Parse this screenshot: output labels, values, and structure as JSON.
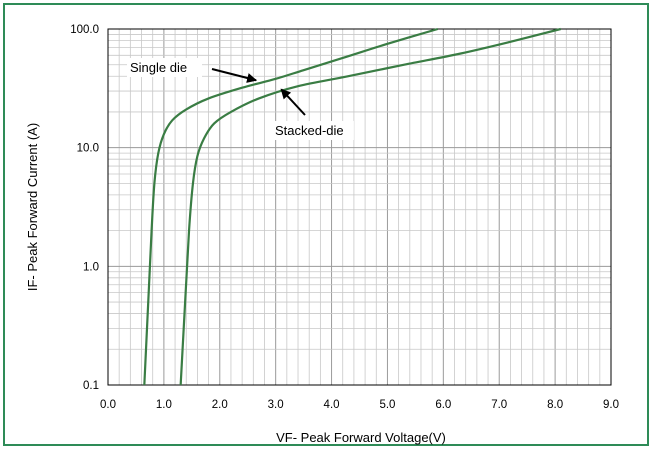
{
  "chart_data": {
    "type": "line",
    "xlabel": "VF- Peak Forward Voltage(V)",
    "ylabel": "IF- Peak Forward Current (A)",
    "xlim": [
      0.0,
      9.0
    ],
    "ylim": [
      0.1,
      100.0
    ],
    "yscale": "log",
    "grid": true,
    "x_ticks": [
      "0.0",
      "1.0",
      "2.0",
      "3.0",
      "4.0",
      "5.0",
      "6.0",
      "7.0",
      "8.0",
      "9.0"
    ],
    "y_ticks": [
      "0.1",
      "1.0",
      "10.0",
      "100.0"
    ],
    "series_color": "#3a7d44",
    "series": [
      {
        "name": "Single die",
        "points": [
          [
            0.65,
            0.1
          ],
          [
            0.72,
            0.5
          ],
          [
            0.78,
            2.0
          ],
          [
            0.83,
            5.0
          ],
          [
            0.9,
            9.0
          ],
          [
            1.0,
            13.0
          ],
          [
            1.15,
            17.0
          ],
          [
            1.4,
            21.0
          ],
          [
            1.8,
            26.0
          ],
          [
            2.4,
            32.0
          ],
          [
            3.0,
            38.0
          ],
          [
            3.5,
            45.0
          ],
          [
            4.2,
            57.0
          ],
          [
            5.0,
            75.0
          ],
          [
            5.9,
            100.0
          ]
        ]
      },
      {
        "name": "Stacked-die",
        "points": [
          [
            1.3,
            0.1
          ],
          [
            1.38,
            0.5
          ],
          [
            1.45,
            2.0
          ],
          [
            1.52,
            5.0
          ],
          [
            1.6,
            8.5
          ],
          [
            1.72,
            12.0
          ],
          [
            1.9,
            16.0
          ],
          [
            2.2,
            20.0
          ],
          [
            2.7,
            26.0
          ],
          [
            3.4,
            33.0
          ],
          [
            4.3,
            40.0
          ],
          [
            5.3,
            50.0
          ],
          [
            6.3,
            62.0
          ],
          [
            7.2,
            78.0
          ],
          [
            8.1,
            100.0
          ]
        ]
      }
    ],
    "annotations": [
      {
        "text": "Single die",
        "arrow_to": [
          2.65,
          37.0
        ]
      },
      {
        "text": "Stacked-die",
        "arrow_to": [
          3.1,
          31.0
        ]
      }
    ]
  }
}
